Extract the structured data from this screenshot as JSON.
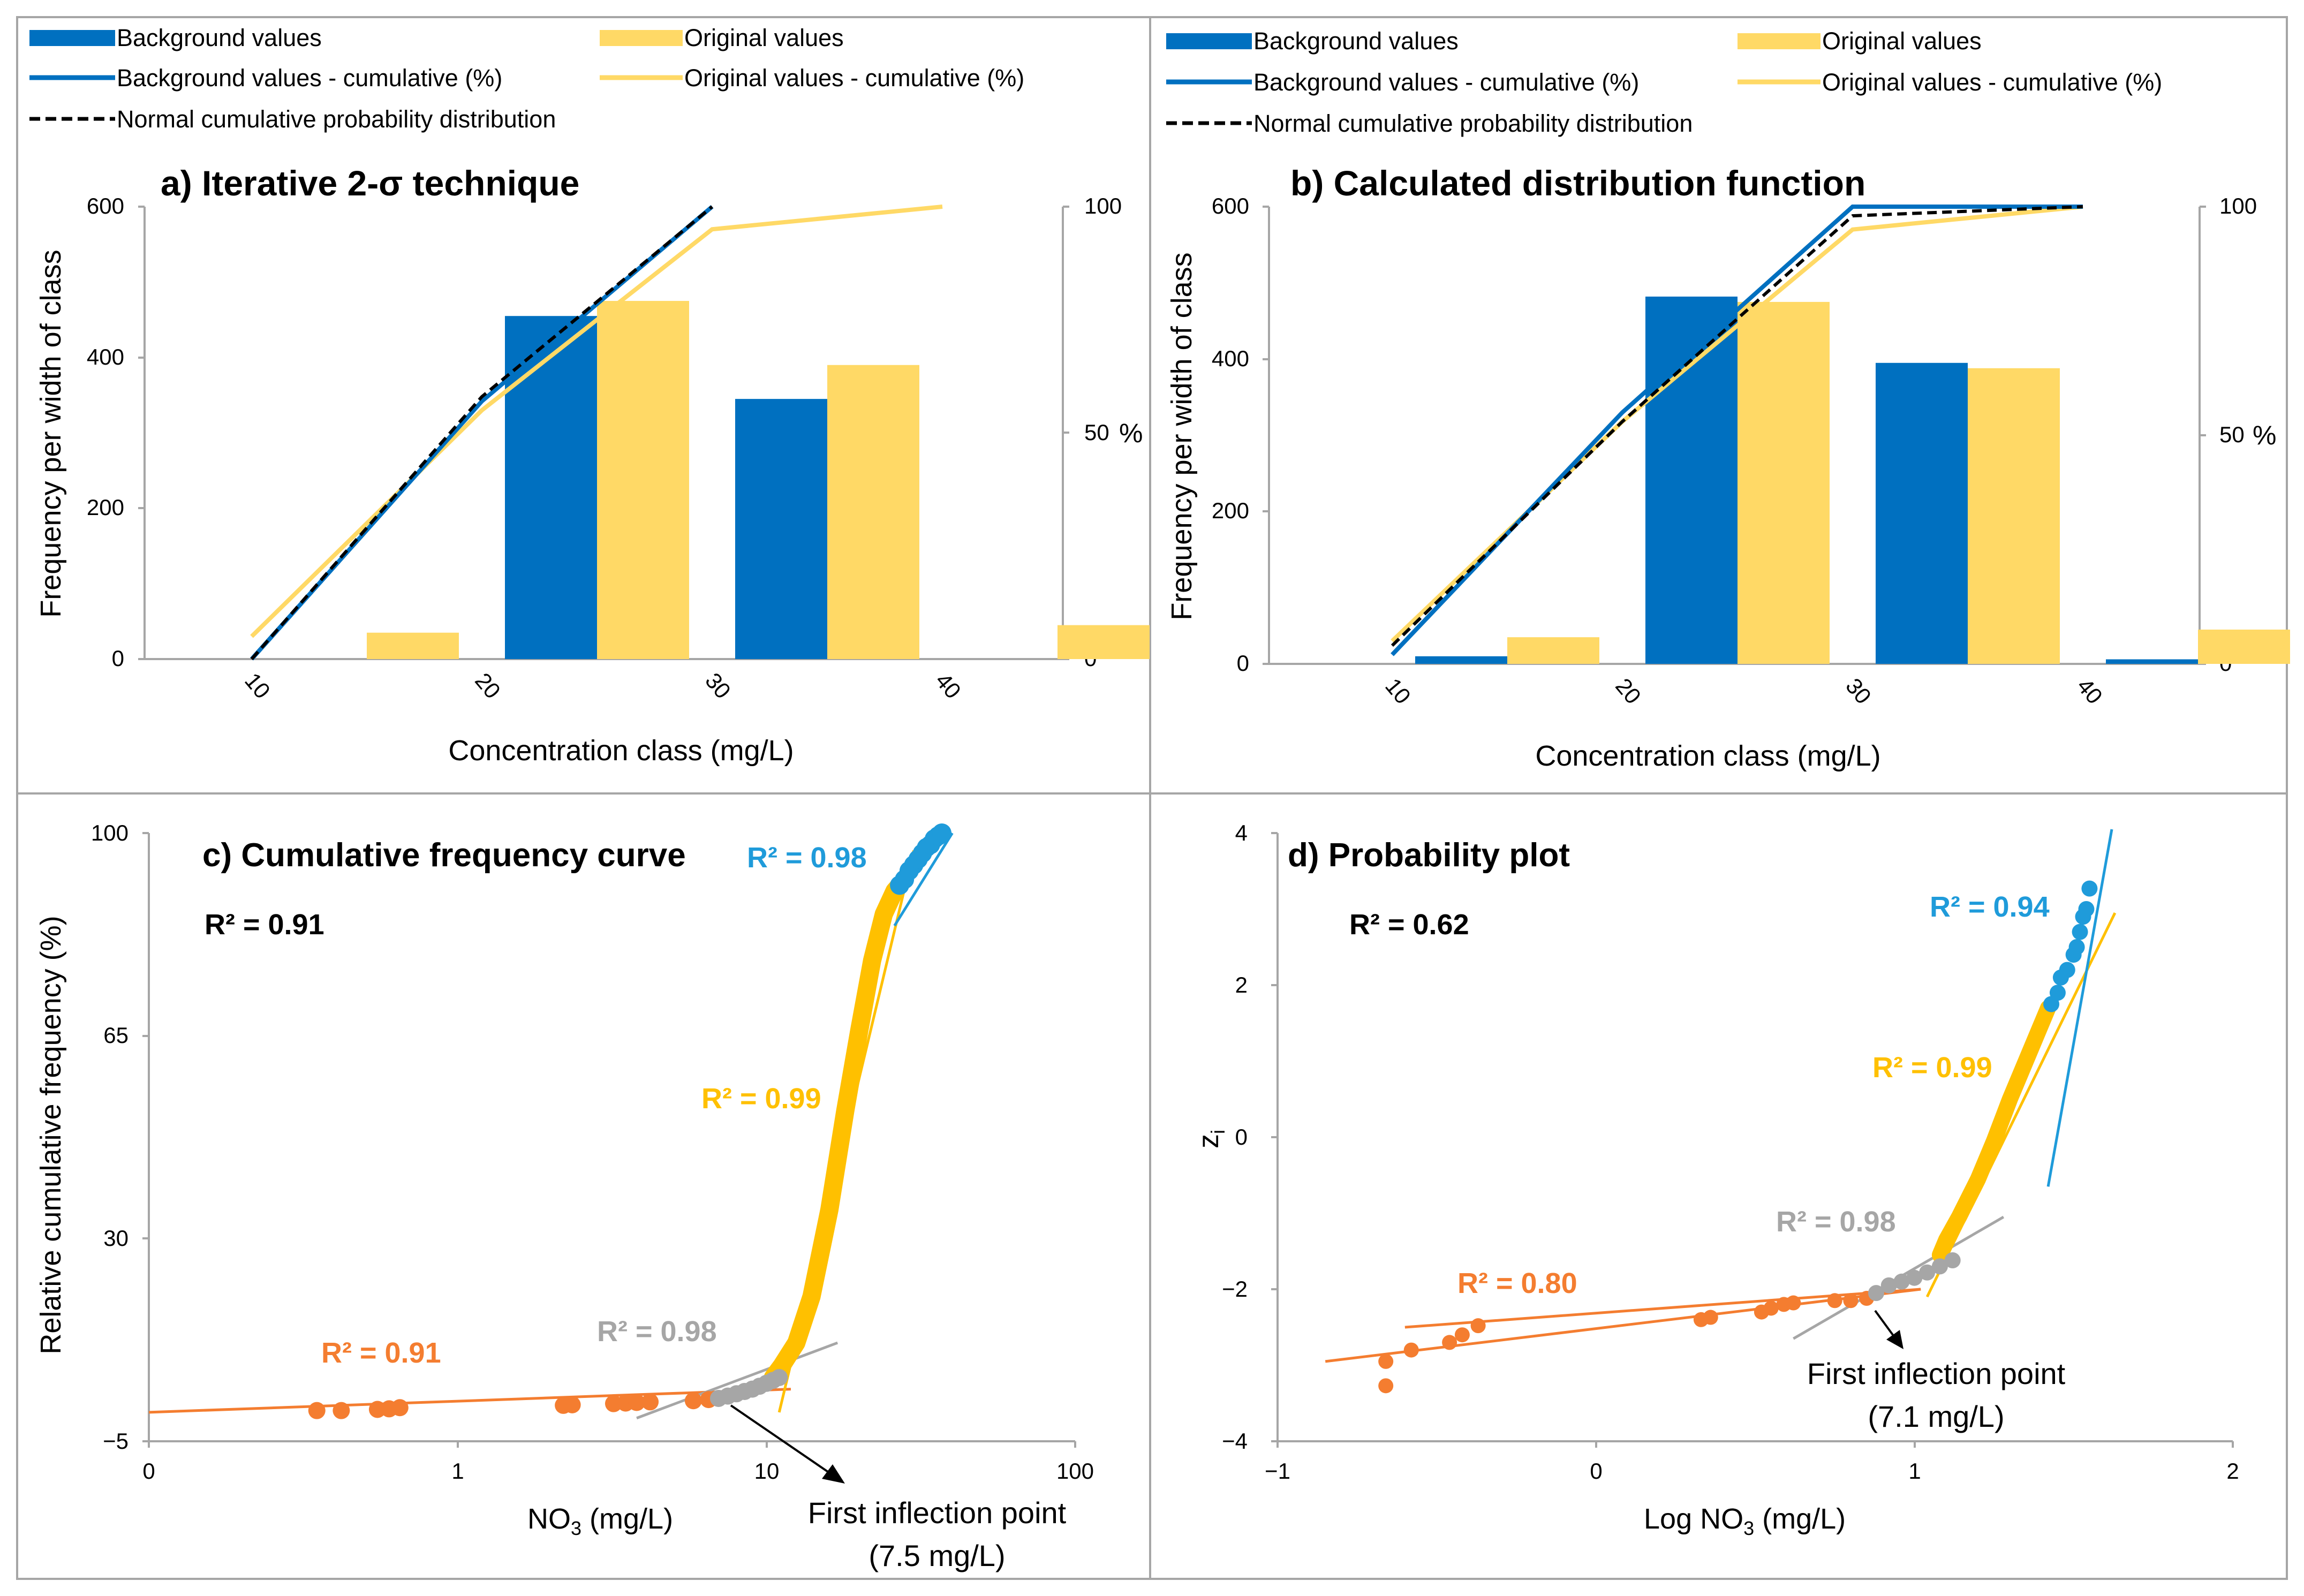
{
  "colors": {
    "blue": "#0070C0",
    "yellow": "#FFD966",
    "gold": "#FFC000",
    "scatter_blue": "#1F9BDA",
    "orange": "#F47D30",
    "gray": "#A6A6A6",
    "frame": "#A6A6A6"
  },
  "legend": {
    "background_values": "Background values",
    "original_values": "Original values",
    "background_cumulative": "Background values - cumulative (%)",
    "original_cumulative": "Original values - cumulative (%)",
    "normal_cdf": "Normal cumulative probability distribution"
  },
  "chart_data": [
    {
      "panel": "a",
      "type": "bar",
      "title": "a) Iterative 2-σ technique",
      "xlabel": "Concentration class (mg/L)",
      "ylabel": "Frequency per width of class",
      "y2label": "%",
      "categories": [
        "10",
        "20",
        "30",
        "40"
      ],
      "ylim": [
        0,
        600
      ],
      "yticks": [
        "0",
        "200",
        "400",
        "600"
      ],
      "y2lim": [
        0,
        100
      ],
      "y2ticks": [
        "0",
        "50",
        "100"
      ],
      "series": [
        {
          "name": "Background values",
          "values": [
            0,
            455,
            345,
            0
          ]
        },
        {
          "name": "Original values",
          "values": [
            35,
            475,
            390,
            45
          ]
        }
      ],
      "lines": [
        {
          "name": "Background values - cumulative (%)",
          "x": [
            10,
            20,
            30
          ],
          "y": [
            0,
            57,
            100
          ]
        },
        {
          "name": "Original values - cumulative (%)",
          "x": [
            10,
            20,
            30,
            40
          ],
          "y": [
            5,
            55,
            95,
            100
          ]
        },
        {
          "name": "Normal cumulative probability distribution",
          "x": [
            10,
            20,
            30
          ],
          "y": [
            0,
            58,
            100
          ]
        }
      ]
    },
    {
      "panel": "b",
      "type": "bar",
      "title": "b) Calculated distribution function",
      "xlabel": "Concentration class (mg/L)",
      "ylabel": "Frequency per width of class",
      "y2label": "%",
      "categories": [
        "10",
        "20",
        "30",
        "40"
      ],
      "ylim": [
        0,
        600
      ],
      "yticks": [
        "0",
        "200",
        "400",
        "600"
      ],
      "y2lim": [
        0,
        100
      ],
      "y2ticks": [
        "0",
        "50",
        "100"
      ],
      "series": [
        {
          "name": "Background values",
          "values": [
            10,
            482,
            395,
            6
          ]
        },
        {
          "name": "Original values",
          "values": [
            35,
            475,
            388,
            45
          ]
        }
      ],
      "lines": [
        {
          "name": "Background values - cumulative (%)",
          "x": [
            10,
            20,
            30,
            40
          ],
          "y": [
            2,
            55,
            100,
            100
          ]
        },
        {
          "name": "Original values - cumulative (%)",
          "x": [
            10,
            20,
            30,
            40
          ],
          "y": [
            5,
            53,
            95,
            100
          ]
        },
        {
          "name": "Normal cumulative probability distribution",
          "x": [
            10,
            20,
            30,
            40
          ],
          "y": [
            4,
            53,
            98,
            100
          ]
        }
      ]
    },
    {
      "panel": "c",
      "type": "scatter",
      "title": "c) Cumulative frequency curve",
      "xscale": "log",
      "xlim": [
        0.1,
        100
      ],
      "xticks": [
        "0",
        "1",
        "10",
        "100"
      ],
      "ylim": [
        -5,
        100
      ],
      "yticks": [
        "−5",
        "30",
        "65",
        "100"
      ],
      "xlabel_main": "NO",
      "xlabel_sub": "3",
      "xlabel_unit": " (mg/L)",
      "ylabel": "Relative cumulative frequency (%)",
      "r2_overall": "R² = 0.91",
      "labels": {
        "orange": "R² = 0.91",
        "gray": "R² = 0.98",
        "gold": "R² = 0.99",
        "blue": "R² = 0.98"
      },
      "annotation": {
        "line1": "First inflection point",
        "line2": "(7.5 mg/L)"
      },
      "fits": {
        "orange": {
          "x": [
            0.1,
            12
          ],
          "y": [
            0,
            4
          ]
        },
        "gray": {
          "x": [
            3.8,
            17
          ],
          "y": [
            -1,
            12
          ]
        },
        "gold": {
          "x": [
            11,
            30
          ],
          "y": [
            0,
            97
          ]
        },
        "blue": {
          "x": [
            26,
            40
          ],
          "y": [
            84,
            100
          ]
        }
      },
      "points_orange": {
        "x": [
          0.35,
          0.42,
          0.55,
          0.6,
          0.65,
          2.2,
          2.35,
          3.2,
          3.5,
          3.8,
          4.2,
          5.8,
          6.5
        ],
        "y": [
          0.3,
          0.3,
          0.5,
          0.6,
          0.8,
          1.2,
          1.3,
          1.5,
          1.6,
          1.7,
          1.8,
          2,
          2.2
        ]
      },
      "points_gray": {
        "x": [
          7,
          7.5,
          8,
          8.5,
          9,
          9.5,
          10,
          10.5,
          11
        ],
        "y": [
          2.4,
          2.8,
          3.2,
          3.6,
          4,
          4.5,
          5,
          5.5,
          6
        ]
      },
      "points_blue": {
        "x": [
          27,
          28,
          29,
          30,
          31,
          32,
          33,
          34,
          35,
          36,
          37
        ],
        "y": [
          91,
          92,
          93.5,
          94.5,
          95.5,
          96.5,
          97.5,
          98,
          99,
          99.5,
          100
        ]
      },
      "gold_curve": {
        "x": [
          10.5,
          11.2,
          12.5,
          14,
          16,
          18,
          20,
          22,
          24,
          26,
          27
        ],
        "y": [
          6,
          8,
          12,
          20,
          35,
          52,
          66,
          78,
          86,
          90,
          91
        ]
      }
    },
    {
      "panel": "d",
      "type": "scatter",
      "title": "d) Probability plot",
      "xlim": [
        -1,
        2
      ],
      "xticks": [
        "−1",
        "0",
        "1",
        "2"
      ],
      "ylim": [
        -4,
        4
      ],
      "yticks": [
        "−4",
        "−2",
        "0",
        "2",
        "4"
      ],
      "xlabel": "Log NO",
      "xlabel_sub": "3",
      "xlabel_unit": " (mg/L)",
      "ylabel": "z",
      "ylabel_sub": "i",
      "r2_overall": "R² = 0.62",
      "labels": {
        "orange": "R² = 0.80",
        "gray": "R² = 0.98",
        "gold": "R² = 0.99",
        "blue": "R² = 0.94"
      },
      "annotation": {
        "line1": "First inflection point",
        "line2": "(7.1 mg/L)"
      },
      "fits": {
        "orange": {
          "x": [
            -0.85,
            1.02
          ],
          "y": [
            -2.95,
            -2.0
          ]
        },
        "orange2": {
          "x": [
            -0.6,
            1.02
          ],
          "y": [
            -2.5,
            -2.0
          ]
        },
        "gray": {
          "x": [
            0.62,
            1.28
          ],
          "y": [
            -2.65,
            -1.05
          ]
        },
        "gold": {
          "x": [
            1.04,
            1.63
          ],
          "y": [
            -2.1,
            2.95
          ]
        },
        "blue": {
          "x": [
            1.42,
            1.62
          ],
          "y": [
            -0.65,
            4.05
          ]
        }
      },
      "points_orange": {
        "x": [
          -0.66,
          -0.66,
          -0.58,
          -0.46,
          -0.42,
          -0.37,
          0.33,
          0.36,
          0.52,
          0.55,
          0.59,
          0.62,
          0.75,
          0.8,
          0.85
        ],
        "y": [
          -3.27,
          -2.95,
          -2.8,
          -2.7,
          -2.6,
          -2.48,
          -2.4,
          -2.37,
          -2.3,
          -2.25,
          -2.2,
          -2.18,
          -2.15,
          -2.15,
          -2.12
        ]
      },
      "points_gray": {
        "x": [
          0.88,
          0.92,
          0.96,
          1.0,
          1.04,
          1.08,
          1.12
        ],
        "y": [
          -2.05,
          -1.95,
          -1.9,
          -1.85,
          -1.78,
          -1.7,
          -1.62
        ]
      },
      "points_blue": {
        "x": [
          1.43,
          1.45,
          1.46,
          1.48,
          1.5,
          1.51,
          1.52,
          1.53,
          1.54,
          1.55
        ],
        "y": [
          1.75,
          1.9,
          2.1,
          2.2,
          2.4,
          2.5,
          2.7,
          2.9,
          3.0,
          3.27
        ]
      },
      "gold_curve": {
        "x": [
          1.08,
          1.1,
          1.14,
          1.2,
          1.25,
          1.3,
          1.36,
          1.42
        ],
        "y": [
          -1.55,
          -1.35,
          -1.05,
          -0.55,
          -0.05,
          0.5,
          1.1,
          1.7
        ]
      }
    }
  ]
}
